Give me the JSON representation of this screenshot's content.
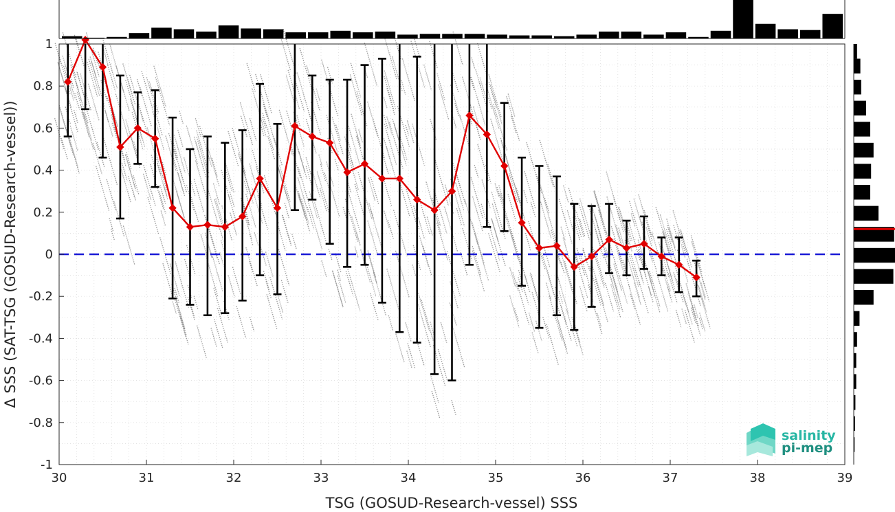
{
  "chart_data": {
    "type": "scatter",
    "xlabel": "TSG (GOSUD-Research-vessel) SSS",
    "ylabel": "Δ SSS (SAT-TSG (GOSUD-Research-vessel))",
    "xlim": [
      30,
      39
    ],
    "ylim": [
      -1,
      1
    ],
    "xticks": [
      "30",
      "31",
      "32",
      "33",
      "34",
      "35",
      "36",
      "37",
      "38",
      "39"
    ],
    "yticks": [
      "1",
      "0.8",
      "0.6",
      "0.4",
      "0.2",
      "0",
      "-0.2",
      "-0.4",
      "-0.6",
      "-0.8",
      "-1"
    ],
    "grid": true,
    "series": [
      {
        "kind": "binned-mean-with-std",
        "color": "#e00000",
        "x": [
          30.1,
          30.3,
          30.5,
          30.7,
          30.9,
          31.1,
          31.3,
          31.5,
          31.7,
          31.9,
          32.1,
          32.3,
          32.5,
          32.7,
          32.9,
          33.1,
          33.3,
          33.5,
          33.7,
          33.9,
          34.1,
          34.3,
          34.5,
          34.7,
          34.9,
          35.1,
          35.3,
          35.5,
          35.7,
          35.9,
          36.1,
          36.3,
          36.5,
          36.7,
          36.9,
          37.1,
          37.3
        ],
        "mean": [
          0.82,
          1.02,
          0.89,
          0.51,
          0.6,
          0.55,
          0.22,
          0.13,
          0.14,
          0.13,
          0.18,
          0.36,
          0.22,
          0.61,
          0.56,
          0.53,
          0.39,
          0.43,
          0.36,
          0.36,
          0.26,
          0.21,
          0.3,
          0.66,
          0.57,
          0.42,
          0.15,
          0.03,
          0.04,
          -0.06,
          -0.01,
          0.07,
          0.03,
          0.05,
          -0.01,
          -0.05,
          -0.11
        ],
        "lower": [
          0.56,
          0.69,
          0.46,
          0.17,
          0.43,
          0.32,
          -0.21,
          -0.24,
          -0.29,
          -0.28,
          -0.22,
          -0.1,
          -0.19,
          0.21,
          0.26,
          0.05,
          -0.06,
          -0.05,
          -0.23,
          -0.37,
          -0.42,
          -0.57,
          -0.6,
          -0.05,
          0.13,
          0.11,
          -0.15,
          -0.35,
          -0.29,
          -0.36,
          -0.25,
          -0.09,
          -0.1,
          -0.07,
          -0.1,
          -0.18,
          -0.2
        ],
        "upper": [
          1.0,
          1.0,
          1.0,
          0.85,
          0.77,
          0.78,
          0.65,
          0.5,
          0.56,
          0.53,
          0.59,
          0.81,
          0.62,
          1.0,
          0.85,
          0.83,
          0.83,
          0.9,
          0.93,
          1.0,
          0.94,
          1.0,
          1.0,
          1.0,
          1.0,
          0.72,
          0.46,
          0.42,
          0.37,
          0.24,
          0.23,
          0.24,
          0.16,
          0.18,
          0.08,
          0.08,
          -0.03
        ]
      }
    ],
    "reference_line": {
      "y": 0,
      "style": "dashed",
      "color": "#1a1ad6"
    },
    "top_histogram": [
      0.06,
      0.02,
      0.04,
      0.14,
      0.28,
      0.24,
      0.18,
      0.34,
      0.26,
      0.24,
      0.16,
      0.16,
      0.2,
      0.16,
      0.18,
      0.1,
      0.12,
      0.12,
      0.12,
      0.1,
      0.08,
      0.08,
      0.06,
      0.1,
      0.18,
      0.18,
      0.1,
      0.16,
      0.04,
      0.2,
      1.0,
      0.38,
      0.24,
      0.22,
      0.64
    ],
    "right_histogram": [
      {
        "ymin": 0.93,
        "ymax": 1.0,
        "value": 0.08
      },
      {
        "ymin": 0.86,
        "ymax": 0.93,
        "value": 0.16
      },
      {
        "ymin": 0.76,
        "ymax": 0.83,
        "value": 0.18
      },
      {
        "ymin": 0.66,
        "ymax": 0.73,
        "value": 0.3
      },
      {
        "ymin": 0.56,
        "ymax": 0.63,
        "value": 0.4
      },
      {
        "ymin": 0.46,
        "ymax": 0.53,
        "value": 0.48
      },
      {
        "ymin": 0.36,
        "ymax": 0.43,
        "value": 0.42
      },
      {
        "ymin": 0.26,
        "ymax": 0.33,
        "value": 0.4
      },
      {
        "ymin": 0.16,
        "ymax": 0.23,
        "value": 0.6
      },
      {
        "ymin": 0.06,
        "ymax": 0.13,
        "value": 0.98
      },
      {
        "ymin": -0.04,
        "ymax": 0.03,
        "value": 1.0
      },
      {
        "ymin": -0.14,
        "ymax": -0.07,
        "value": 0.96
      },
      {
        "ymin": -0.24,
        "ymax": -0.17,
        "value": 0.48
      },
      {
        "ymin": -0.34,
        "ymax": -0.27,
        "value": 0.14
      },
      {
        "ymin": -0.44,
        "ymax": -0.37,
        "value": 0.08
      },
      {
        "ymin": -0.54,
        "ymax": -0.47,
        "value": 0.06
      },
      {
        "ymin": -0.64,
        "ymax": -0.57,
        "value": 0.06
      },
      {
        "ymin": -0.74,
        "ymax": -0.67,
        "value": 0.04
      },
      {
        "ymin": -0.84,
        "ymax": -0.77,
        "value": 0.03
      },
      {
        "ymin": -0.94,
        "ymax": -0.87,
        "value": 0.02
      }
    ],
    "right_histogram_median": 0.12,
    "colors": {
      "mean_line": "#e00000",
      "error_bar": "#000000",
      "scatter": "#8a8a8a",
      "histogram": "#000000",
      "zero_line": "#1a1ad6",
      "grid": "#d8d8d8"
    }
  },
  "logo": {
    "line1": "salinity",
    "line2": "pi-mep",
    "colors": {
      "line1": "#27b6a4",
      "line2": "#1f8f80",
      "mark": "#2ec4b0"
    }
  }
}
